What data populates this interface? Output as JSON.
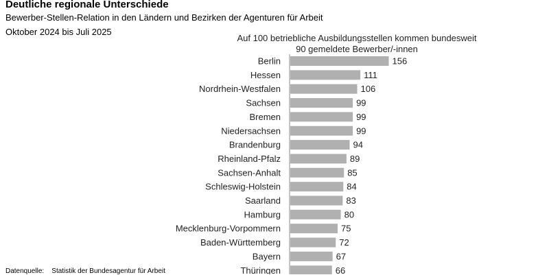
{
  "title": "Deutliche regionale Unterschiede",
  "subtitle": "Bewerber-Stellen-Relation in den Ländern und Bezirken der Agenturen für Arbeit",
  "period": "Oktober 2024 bis Juli 2025",
  "annotation_line1": "Auf 100 betriebliche Ausbildungsstellen kommen bundesweit",
  "annotation_line2": "90 gemeldete Bewerber/-innen",
  "source_label": "Datenquelle:",
  "source_text": "Statistik der Bundesagentur für Arbeit",
  "chart_data": {
    "type": "bar",
    "orientation": "horizontal",
    "title": "Deutliche regionale Unterschiede",
    "categories": [
      "Berlin",
      "Hessen",
      "Nordrhein-Westfalen",
      "Sachsen",
      "Bremen",
      "Niedersachsen",
      "Brandenburg",
      "Rheinland-Pfalz",
      "Sachsen-Anhalt",
      "Schleswig-Holstein",
      "Saarland",
      "Hamburg",
      "Mecklenburg-Vorpommern",
      "Baden-Württemberg",
      "Bayern",
      "Thüringen"
    ],
    "values": [
      156,
      111,
      106,
      99,
      99,
      99,
      94,
      89,
      85,
      84,
      83,
      80,
      75,
      72,
      67,
      66
    ],
    "bar_color": "#b0b0b0",
    "grid": false,
    "data_labels": true
  }
}
